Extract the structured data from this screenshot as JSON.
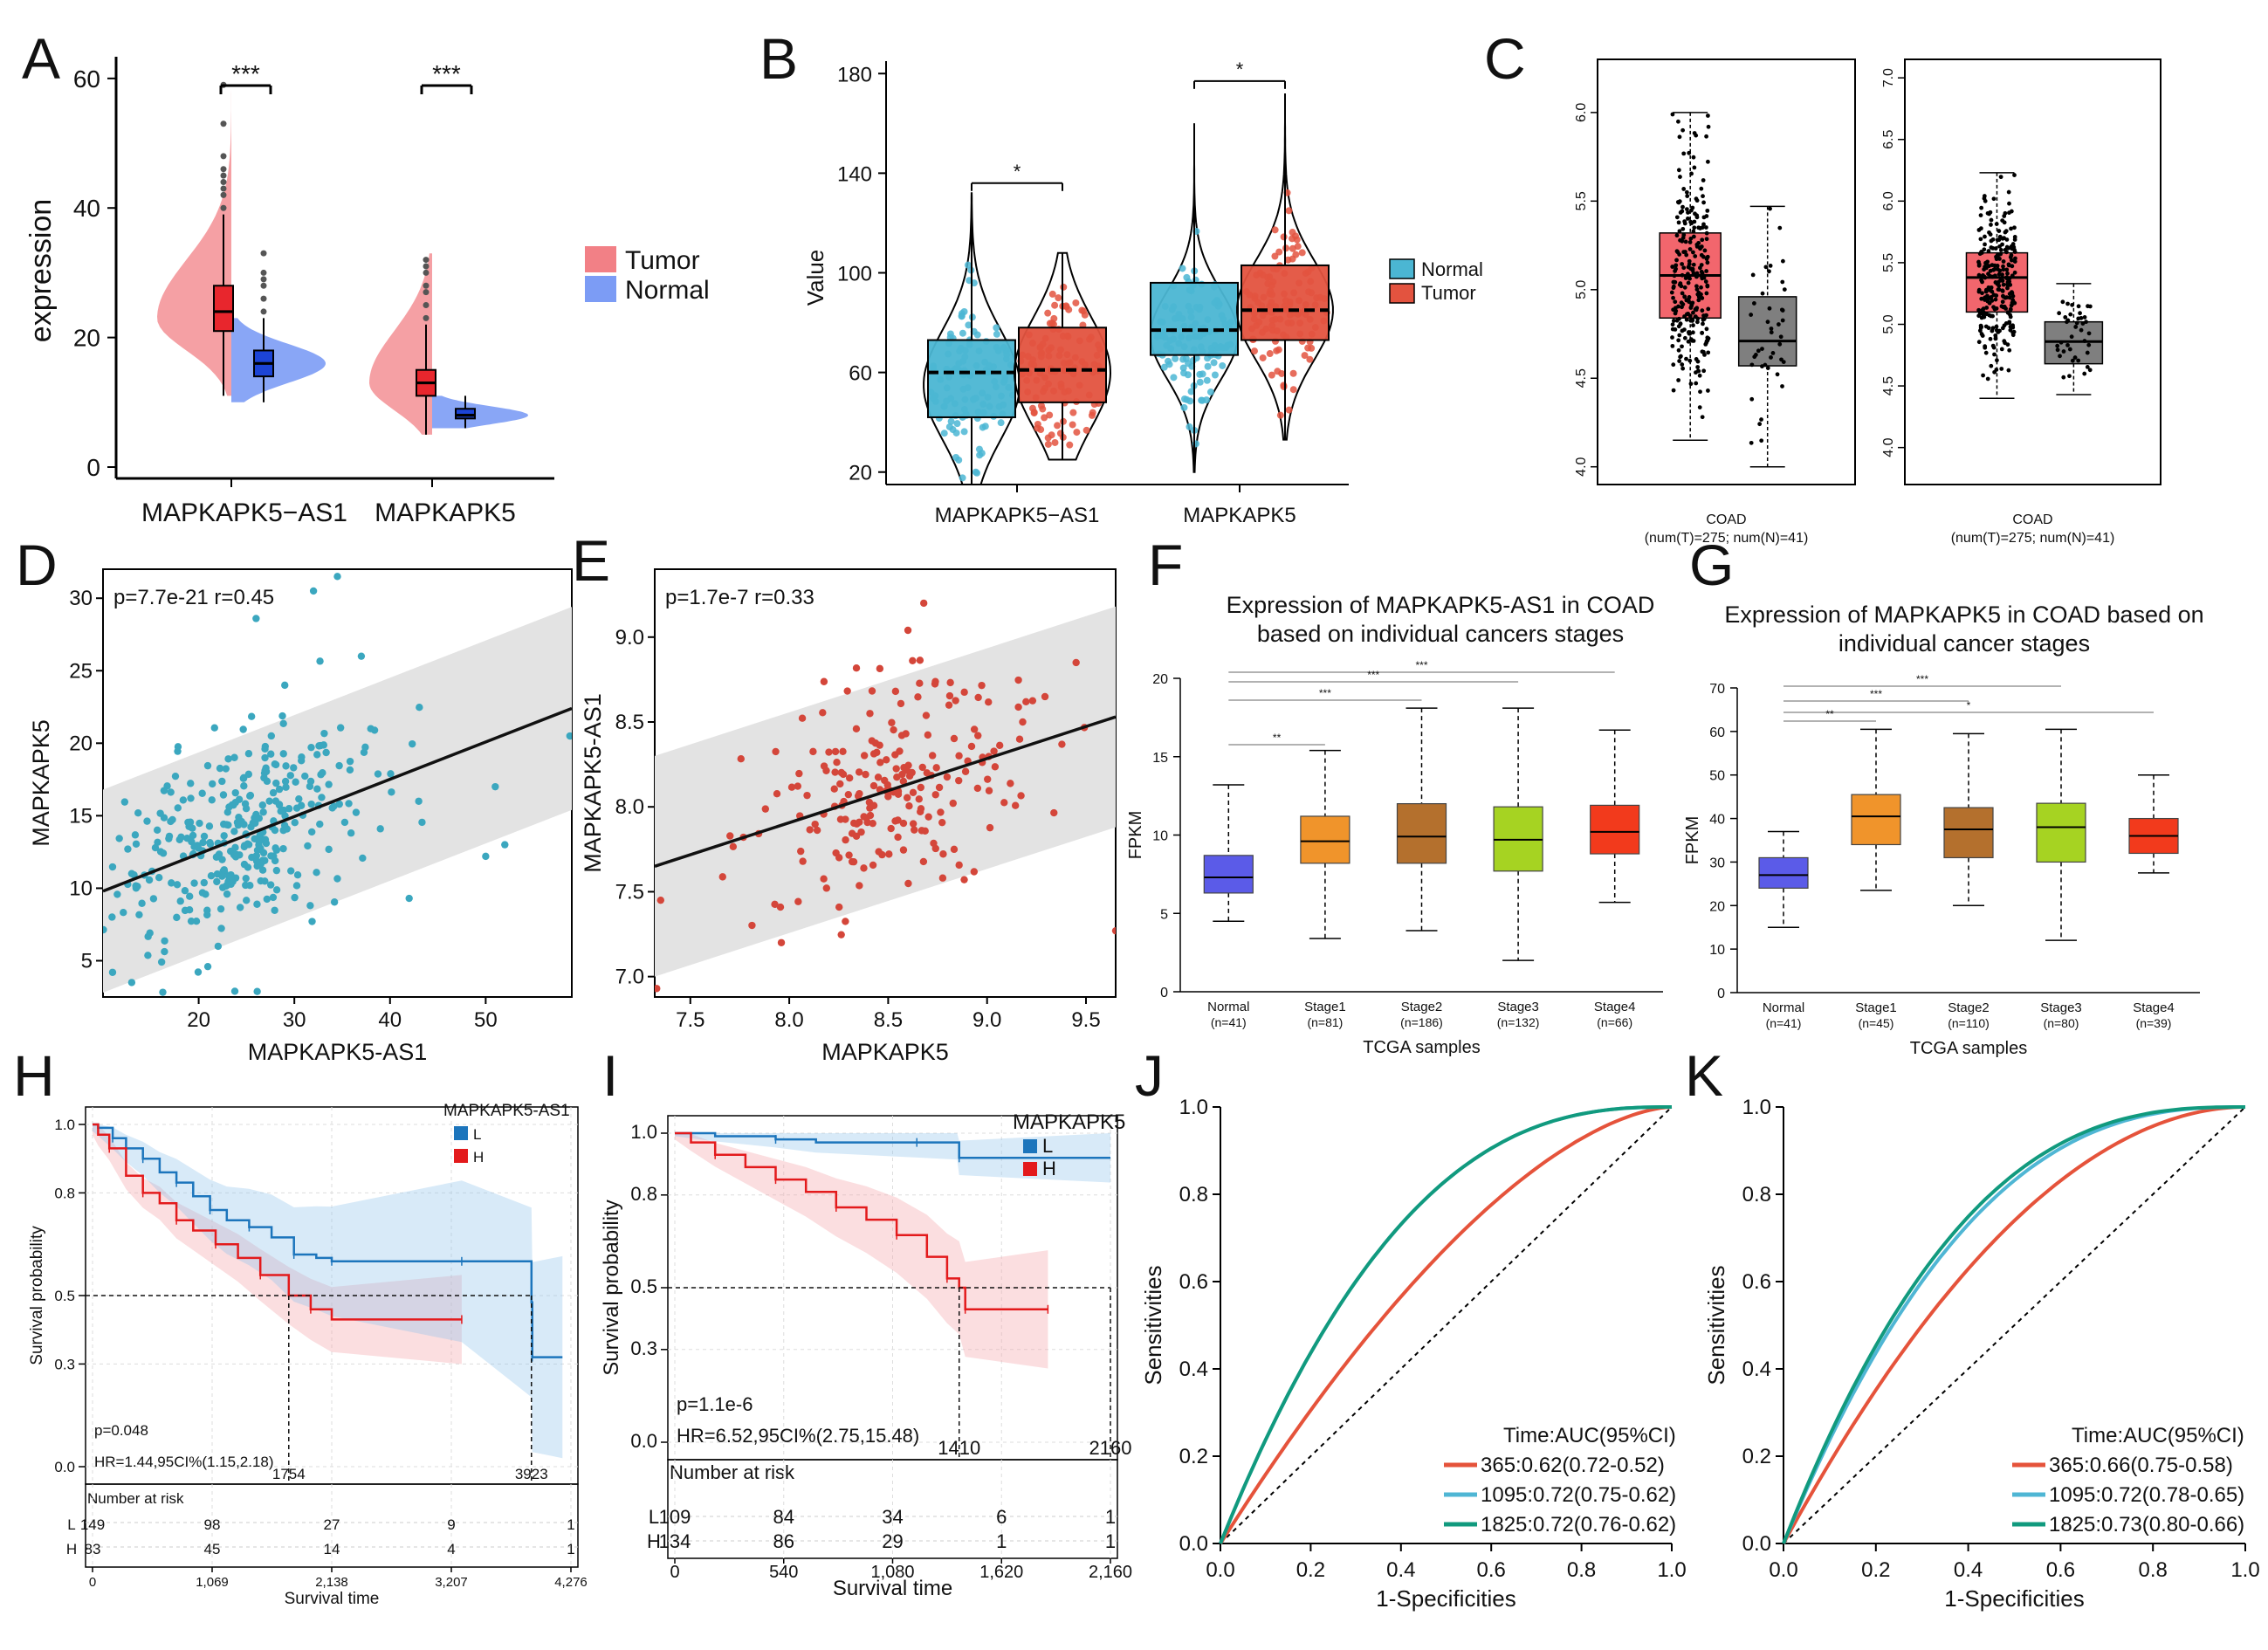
{
  "panels": {
    "A": {
      "letter": "A"
    },
    "B": {
      "letter": "B"
    },
    "C": {
      "letter": "C"
    },
    "D": {
      "letter": "D"
    },
    "E": {
      "letter": "E"
    },
    "F": {
      "letter": "F"
    },
    "G": {
      "letter": "G"
    },
    "H": {
      "letter": "H"
    },
    "I": {
      "letter": "I"
    },
    "J": {
      "letter": "J"
    },
    "K": {
      "letter": "K"
    }
  },
  "colors": {
    "tumor": "#f28086",
    "normal": "#7c9cf5",
    "tumor_box": "#e8262d",
    "normal_box": "#1c44d6",
    "b_normal": "#4bb6d3",
    "b_tumor": "#e3533f",
    "c_tumor": "#f2666d",
    "c_normal": "#7f7f7f",
    "scatter_d": "#3ba7bf",
    "scatter_e": "#d4463a",
    "blue_km": "#1c75bc",
    "red_km": "#e31a1c",
    "roc365": "#e5533b",
    "roc1095": "#4fb6d4",
    "roc1825": "#119a7e"
  },
  "chart_data": [
    {
      "id": "A",
      "type": "violin-box",
      "ylabel": "expression",
      "ylim": [
        0,
        62
      ],
      "yticks": [
        0,
        20,
        40,
        60
      ],
      "categories": [
        "MAPKAPK5−AS1",
        "MAPKAPK5"
      ],
      "legend": [
        "Tumor",
        "Normal"
      ],
      "significance": [
        "***",
        "***"
      ],
      "boxes": [
        {
          "cat": "MAPKAPK5−AS1",
          "group": "Tumor",
          "min": 11,
          "q1": 21,
          "median": 24,
          "q3": 28,
          "max": 39
        },
        {
          "cat": "MAPKAPK5−AS1",
          "group": "Normal",
          "min": 10,
          "q1": 14,
          "median": 16,
          "q3": 18,
          "max": 23
        },
        {
          "cat": "MAPKAPK5",
          "group": "Tumor",
          "min": 5,
          "q1": 11,
          "median": 13,
          "q3": 15,
          "max": 22
        },
        {
          "cat": "MAPKAPK5",
          "group": "Normal",
          "min": 6,
          "q1": 7.5,
          "median": 8,
          "q3": 9,
          "max": 11
        }
      ]
    },
    {
      "id": "B",
      "type": "violin-box",
      "ylabel": "Value",
      "ylim": [
        15,
        185
      ],
      "yticks": [
        20,
        60,
        100,
        140,
        180
      ],
      "categories": [
        "MAPKAPK5−AS1",
        "MAPKAPK5"
      ],
      "legend": [
        "Normal",
        "Tumor"
      ],
      "significance": [
        "*",
        "*"
      ],
      "boxes": [
        {
          "cat": "MAPKAPK5−AS1",
          "group": "Normal",
          "min": 15,
          "q1": 42,
          "median": 60,
          "q3": 73,
          "max": 132
        },
        {
          "cat": "MAPKAPK5−AS1",
          "group": "Tumor",
          "min": 25,
          "q1": 48,
          "median": 61,
          "q3": 78,
          "max": 108
        },
        {
          "cat": "MAPKAPK5",
          "group": "Normal",
          "min": 20,
          "q1": 67,
          "median": 77,
          "q3": 96,
          "max": 160
        },
        {
          "cat": "MAPKAPK5",
          "group": "Tumor",
          "min": 33,
          "q1": 73,
          "median": 85,
          "q3": 103,
          "max": 172
        }
      ]
    },
    {
      "id": "C1",
      "type": "box",
      "xlabel": "COAD",
      "xsub": "(num(T)=275; num(N)=41)",
      "ylim": [
        3.9,
        6.3
      ],
      "yticks": [
        "4.0",
        "4.5",
        "5.0",
        "5.5",
        "6.0"
      ],
      "boxes": [
        {
          "group": "Tumor",
          "min": 4.15,
          "q1": 4.84,
          "median": 5.08,
          "q3": 5.32,
          "max": 6.0
        },
        {
          "group": "Normal",
          "min": 4.0,
          "q1": 4.57,
          "median": 4.71,
          "q3": 4.96,
          "max": 5.47
        }
      ]
    },
    {
      "id": "C2",
      "type": "box",
      "xlabel": "COAD",
      "xsub": "(num(T)=275; num(N)=41)",
      "ylim": [
        3.7,
        7.15
      ],
      "yticks": [
        "4.0",
        "4.5",
        "5.0",
        "5.5",
        "6.0",
        "6.5",
        "7.0"
      ],
      "boxes": [
        {
          "group": "Tumor",
          "min": 4.4,
          "q1": 5.1,
          "median": 5.38,
          "q3": 5.58,
          "max": 6.23
        },
        {
          "group": "Normal",
          "min": 4.43,
          "q1": 4.68,
          "median": 4.86,
          "q3": 5.02,
          "max": 5.33
        }
      ]
    },
    {
      "id": "D",
      "type": "scatter",
      "xlabel": "MAPKAPK5-AS1",
      "ylabel": "MAPKAPK5",
      "annotation": "p=7.7e-21 r=0.45",
      "xlim": [
        10,
        59
      ],
      "ylim": [
        2.5,
        32
      ],
      "xticks": [
        "20",
        "30",
        "40",
        "50"
      ],
      "yticks": [
        "5",
        "10",
        "15",
        "20",
        "25",
        "30"
      ],
      "fit": {
        "x": [
          10,
          59
        ],
        "y": [
          9.8,
          22.4
        ]
      },
      "band": 7
    },
    {
      "id": "E",
      "type": "scatter",
      "xlabel": "MAPKAPK5",
      "ylabel": "MAPKAPK5-AS1",
      "annotation": "p=1.7e-7 r=0.33",
      "xlim": [
        7.32,
        9.65
      ],
      "ylim": [
        6.88,
        9.4
      ],
      "xticks": [
        "7.5",
        "8.0",
        "8.5",
        "9.0",
        "9.5"
      ],
      "yticks": [
        "7.0",
        "7.5",
        "8.0",
        "8.5",
        "9.0"
      ],
      "fit": {
        "x": [
          7.32,
          9.65
        ],
        "y": [
          7.65,
          8.53
        ]
      },
      "band": 0.65
    },
    {
      "id": "F",
      "type": "box",
      "title": [
        "Expression of MAPKAPK5-AS1 in COAD",
        "based on individual cancers stages"
      ],
      "xlabel": "TCGA samples",
      "ylabel": "FPKM",
      "ylim": [
        0,
        20
      ],
      "yticks": [
        "0",
        "5",
        "10",
        "15",
        "20"
      ],
      "categories": [
        "Normal",
        "Stage1",
        "Stage2",
        "Stage3",
        "Stage4"
      ],
      "ns": [
        "(n=41)",
        "(n=81)",
        "(n=186)",
        "(n=132)",
        "(n=66)"
      ],
      "sig": [
        "**",
        "***",
        "***",
        "***"
      ],
      "boxes": [
        {
          "min": 4.5,
          "q1": 6.3,
          "median": 7.3,
          "q3": 8.7,
          "max": 13.2
        },
        {
          "min": 3.4,
          "q1": 8.2,
          "median": 9.6,
          "q3": 11.2,
          "max": 15.4
        },
        {
          "min": 3.9,
          "q1": 8.2,
          "median": 9.9,
          "q3": 12.0,
          "max": 18.1
        },
        {
          "min": 2.0,
          "q1": 7.7,
          "median": 9.7,
          "q3": 11.8,
          "max": 18.1
        },
        {
          "min": 5.7,
          "q1": 8.8,
          "median": 10.2,
          "q3": 11.9,
          "max": 16.7
        }
      ]
    },
    {
      "id": "G",
      "type": "box",
      "title": [
        "Expression of MAPKAPK5 in COAD based on",
        "individual cancer stages"
      ],
      "xlabel": "TCGA samples",
      "ylabel": "FPKM",
      "ylim": [
        0,
        70
      ],
      "yticks": [
        "0",
        "10",
        "20",
        "30",
        "40",
        "50",
        "60",
        "70"
      ],
      "categories": [
        "Normal",
        "Stage1",
        "Stage2",
        "Stage3",
        "Stage4"
      ],
      "ns": [
        "(n=41)",
        "(n=45)",
        "(n=110)",
        "(n=80)",
        "(n=39)"
      ],
      "sig": [
        "**",
        "***",
        "***",
        "*"
      ],
      "boxes": [
        {
          "min": 15,
          "q1": 24,
          "median": 27,
          "q3": 31,
          "max": 37
        },
        {
          "min": 23.5,
          "q1": 34,
          "median": 40.5,
          "q3": 45.5,
          "max": 60.5
        },
        {
          "min": 20,
          "q1": 31,
          "median": 37.5,
          "q3": 42.5,
          "max": 59.5
        },
        {
          "min": 12,
          "q1": 30,
          "median": 38,
          "q3": 43.5,
          "max": 60.5
        },
        {
          "min": 27.5,
          "q1": 32,
          "median": 36,
          "q3": 40,
          "max": 50
        }
      ]
    },
    {
      "id": "H",
      "type": "km",
      "title": "MAPKAPK5-AS1",
      "legend": [
        "L",
        "H"
      ],
      "ylabel": "Survival probability",
      "xlabel": "Survival time",
      "yticks": [
        "0.0",
        "0.3",
        "0.5",
        "0.8",
        "1.0"
      ],
      "xticks": [
        "0",
        "1,069",
        "2,138",
        "3,207",
        "4,276"
      ],
      "xmax": 4276,
      "pval": "p=0.048",
      "hr": "HR=1.44,95CI%(1.15,2.18)",
      "median_times": [
        "1754",
        "3923"
      ],
      "risk_header": "Number at risk",
      "risk": {
        "L": [
          "149",
          "98",
          "27",
          "9",
          "1"
        ],
        "H": [
          "83",
          "45",
          "14",
          "4",
          "1"
        ]
      },
      "curves": {
        "L": [
          [
            0,
            1
          ],
          [
            50,
            0.99
          ],
          [
            180,
            0.96
          ],
          [
            300,
            0.93
          ],
          [
            450,
            0.9
          ],
          [
            600,
            0.86
          ],
          [
            750,
            0.83
          ],
          [
            900,
            0.79
          ],
          [
            1050,
            0.75
          ],
          [
            1200,
            0.72
          ],
          [
            1400,
            0.7
          ],
          [
            1600,
            0.67
          ],
          [
            1800,
            0.62
          ],
          [
            2000,
            0.61
          ],
          [
            2138,
            0.6
          ],
          [
            3200,
            0.6
          ],
          [
            3300,
            0.6
          ],
          [
            3923,
            0.48
          ],
          [
            3930,
            0.32
          ],
          [
            4200,
            0.32
          ]
        ],
        "H": [
          [
            0,
            1
          ],
          [
            50,
            0.97
          ],
          [
            150,
            0.93
          ],
          [
            300,
            0.85
          ],
          [
            450,
            0.8
          ],
          [
            600,
            0.77
          ],
          [
            750,
            0.72
          ],
          [
            900,
            0.69
          ],
          [
            1100,
            0.65
          ],
          [
            1300,
            0.61
          ],
          [
            1500,
            0.56
          ],
          [
            1754,
            0.5
          ],
          [
            1950,
            0.46
          ],
          [
            2138,
            0.43
          ],
          [
            3300,
            0.43
          ]
        ]
      }
    },
    {
      "id": "I",
      "type": "km",
      "title": "MAPKAPK5",
      "legend": [
        "L",
        "H"
      ],
      "ylabel": "Survival probability",
      "xlabel": "Survival time",
      "yticks": [
        "0.0",
        "0.3",
        "0.5",
        "0.8",
        "1.0"
      ],
      "xticks": [
        "0",
        "540",
        "1,080",
        "1,620",
        "2,160"
      ],
      "xmax": 2160,
      "pval": "p=1.1e-6",
      "hr": "HR=6.52,95CI%(2.75,15.48)",
      "median_times": [
        "1410",
        "2160"
      ],
      "risk_header": "Number at risk",
      "risk": {
        "L": [
          "109",
          "84",
          "34",
          "6",
          "1"
        ],
        "H": [
          "134",
          "86",
          "29",
          "1",
          "1"
        ]
      },
      "curves": {
        "L": [
          [
            0,
            1
          ],
          [
            200,
            0.99
          ],
          [
            500,
            0.98
          ],
          [
            700,
            0.97
          ],
          [
            1200,
            0.97
          ],
          [
            1400,
            0.97
          ],
          [
            1410,
            0.92
          ],
          [
            2160,
            0.92
          ]
        ],
        "H": [
          [
            0,
            1
          ],
          [
            80,
            0.97
          ],
          [
            200,
            0.93
          ],
          [
            350,
            0.89
          ],
          [
            500,
            0.85
          ],
          [
            650,
            0.81
          ],
          [
            800,
            0.76
          ],
          [
            950,
            0.72
          ],
          [
            1100,
            0.67
          ],
          [
            1250,
            0.6
          ],
          [
            1350,
            0.53
          ],
          [
            1410,
            0.5
          ],
          [
            1440,
            0.43
          ],
          [
            1700,
            0.43
          ],
          [
            1850,
            0.43
          ]
        ]
      }
    },
    {
      "id": "J",
      "type": "roc",
      "xlabel": "1-Specificities",
      "ylabel": "Sensitivities",
      "ticks": [
        "0.0",
        "0.2",
        "0.4",
        "0.6",
        "0.8",
        "1.0"
      ],
      "legend_title": "Time:AUC(95%CI)",
      "series": [
        {
          "name": "365:0.62(0.72-0.52)",
          "auc": 0.62
        },
        {
          "name": "1095:0.72(0.75-0.62)",
          "auc": 0.72
        },
        {
          "name": "1825:0.72(0.76-0.62)",
          "auc": 0.72
        }
      ]
    },
    {
      "id": "K",
      "type": "roc",
      "xlabel": "1-Specificities",
      "ylabel": "Sensitivities",
      "ticks": [
        "0.0",
        "0.2",
        "0.4",
        "0.6",
        "0.8",
        "1.0"
      ],
      "legend_title": "Time:AUC(95%CI)",
      "series": [
        {
          "name": "365:0.66(0.75-0.58)",
          "auc": 0.66
        },
        {
          "name": "1095:0.72(0.78-0.65)",
          "auc": 0.72
        },
        {
          "name": "1825:0.73(0.80-0.66)",
          "auc": 0.73
        }
      ]
    }
  ]
}
